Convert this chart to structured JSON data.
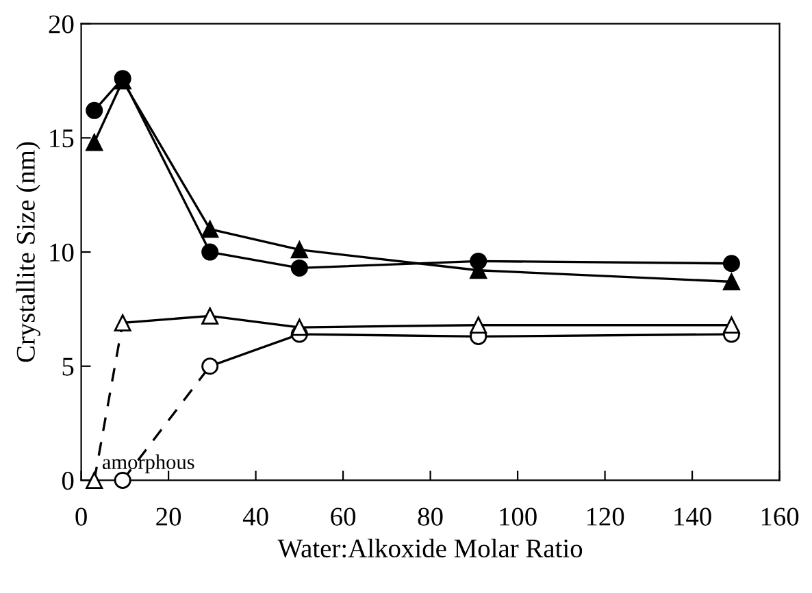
{
  "chart_data": {
    "type": "line",
    "xlabel": "Water:Alkoxide Molar Ratio",
    "ylabel": "Crystallite Size (nm)",
    "xlim": [
      0,
      160
    ],
    "xticks": [
      0,
      20,
      40,
      60,
      80,
      100,
      120,
      140,
      160
    ],
    "ylim": [
      0,
      20
    ],
    "yticks": [
      0,
      5,
      10,
      15,
      20
    ],
    "grid": false,
    "legend": false,
    "series": [
      {
        "color": "#000000",
        "marker": "circle",
        "line_style": "solid",
        "x": [
          3,
          9.5,
          29.5,
          50,
          91,
          149
        ],
        "values": [
          16.2,
          17.6,
          10.0,
          9.3,
          9.6,
          9.5
        ]
      },
      {
        "color": "#000000",
        "marker": "triangle",
        "line_style": "solid",
        "x": [
          3,
          9.5,
          29.5,
          50,
          91,
          149
        ],
        "values": [
          14.8,
          17.5,
          11.0,
          10.1,
          9.2,
          8.7
        ]
      },
      {
        "color": "#000000",
        "line_style": "dashed",
        "x": [
          3,
          9.5
        ],
        "values": [
          0,
          6.9
        ]
      },
      {
        "color": "#000000",
        "marker": "triangle",
        "line_style": "none",
        "x": [
          3
        ],
        "values": [
          0
        ]
      },
      {
        "color": "#000000",
        "marker": "triangle",
        "line_style": "solid",
        "x": [
          9.5,
          29.5,
          50,
          91,
          149
        ],
        "values": [
          6.9,
          7.2,
          6.7,
          6.8,
          6.8
        ]
      },
      {
        "color": "#000000",
        "line_style": "dashed",
        "x": [
          9.5,
          29.5
        ],
        "values": [
          0,
          5.0
        ]
      },
      {
        "color": "#000000",
        "marker": "circle",
        "line_style": "none",
        "x": [
          9.5
        ],
        "values": [
          0
        ]
      },
      {
        "color": "#000000",
        "marker": "circle",
        "line_style": "solid",
        "x": [
          29.5,
          50,
          91,
          149
        ],
        "values": [
          5.0,
          6.4,
          6.3,
          6.4
        ]
      }
    ],
    "annotations": [
      {
        "text": "amorphous",
        "x": 3,
        "y": 0
      }
    ]
  }
}
